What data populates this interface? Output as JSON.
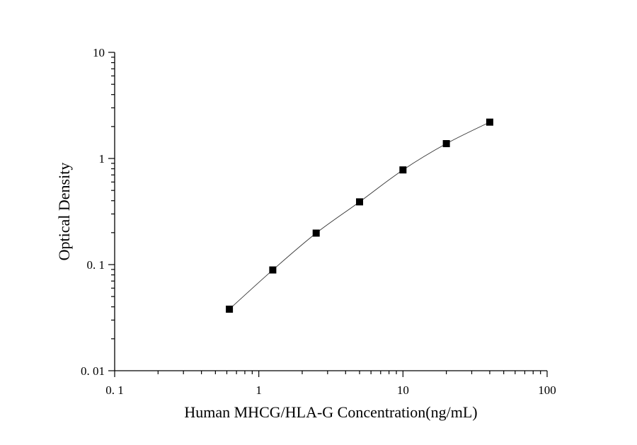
{
  "chart_data": {
    "type": "scatter",
    "xlabel": "Human MHCG/HLA-G Concentration(ng/mL)",
    "ylabel": "Optical Density",
    "xscale": "log",
    "yscale": "log",
    "xlim": [
      0.1,
      100
    ],
    "ylim": [
      0.01,
      10
    ],
    "x_tick_labels": [
      "0. 1",
      "1",
      "10",
      "100"
    ],
    "y_tick_labels": [
      "0. 01",
      "0. 1",
      "1",
      "10"
    ],
    "grid": false,
    "legend": "none",
    "marker": "square",
    "fitted_curve": true,
    "series": [
      {
        "x": [
          0.625,
          1.25,
          2.5,
          5,
          10,
          20,
          40
        ],
        "y": [
          0.038,
          0.089,
          0.198,
          0.39,
          0.78,
          1.38,
          2.2
        ]
      }
    ]
  }
}
